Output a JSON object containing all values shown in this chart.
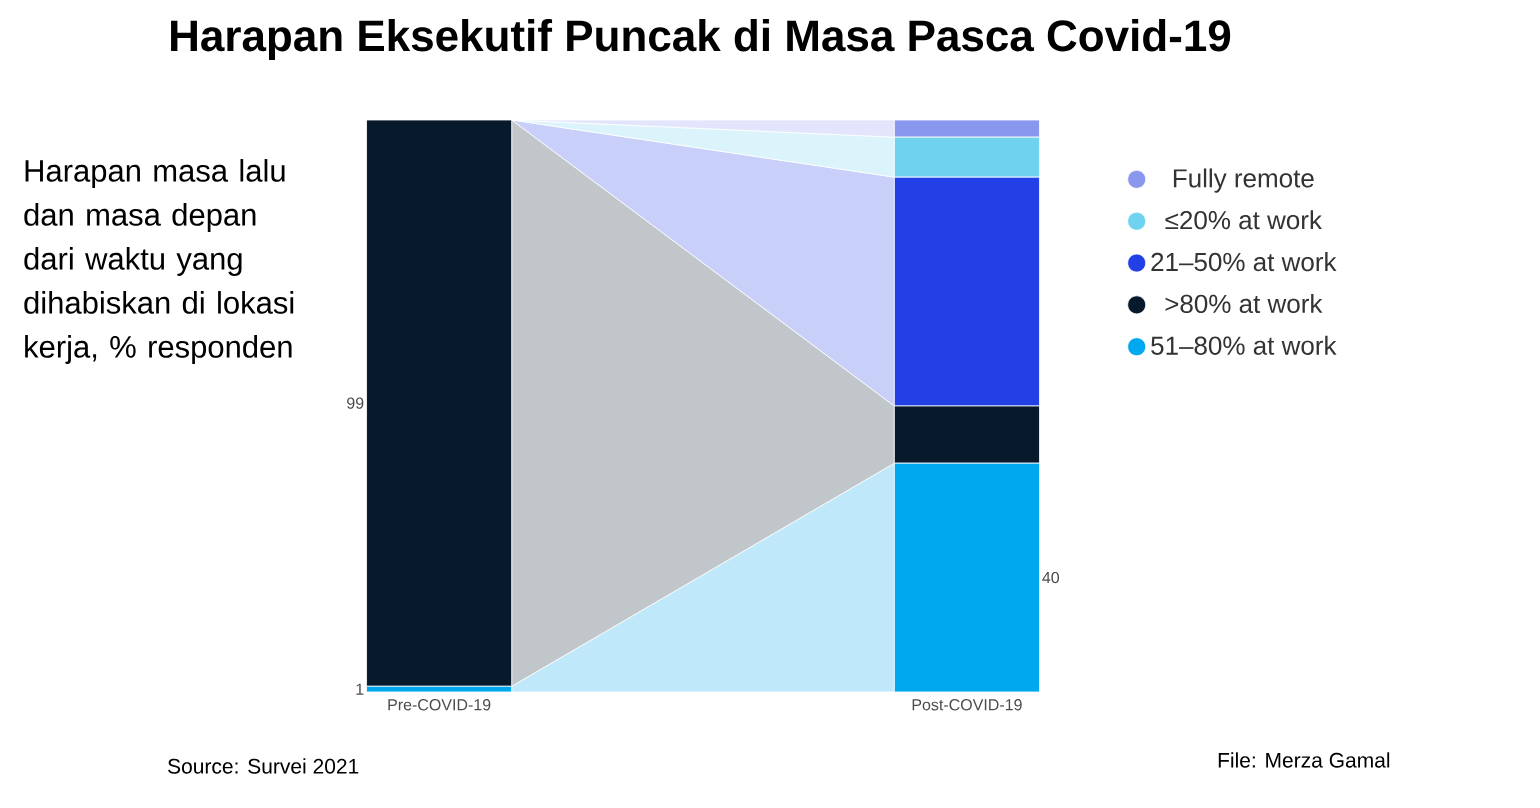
{
  "chart_data": {
    "type": "bar",
    "stacked": true,
    "title": "Harapan Eksekutif Puncak di Masa Pasca Covid-19",
    "subtitle": "Harapan masa lalu dan masa depan dari waktu yang dihabiskan di lokasi kerja, % responden",
    "categories": [
      "Pre-COVID-19",
      "Post-COVID-19"
    ],
    "series": [
      {
        "name": "51–80% at work",
        "color": "#00a8f0",
        "values": [
          1,
          40
        ],
        "value_labels": [
          "1",
          "40"
        ]
      },
      {
        "name": ">80% at work",
        "color": "#061a2b",
        "values": [
          99,
          10
        ],
        "value_labels": [
          "99",
          null
        ]
      },
      {
        "name": "21–50% at work",
        "color": "#2340e6",
        "values": [
          0,
          40
        ],
        "value_labels": [
          null,
          null
        ]
      },
      {
        "name": "≤20% at work",
        "color": "#6fd3f0",
        "values": [
          0,
          7
        ],
        "value_labels": [
          null,
          null
        ]
      },
      {
        "name": "Fully remote",
        "color": "#8a97ee",
        "values": [
          0,
          3
        ],
        "value_labels": [
          null,
          null
        ]
      }
    ],
    "ylim": [
      0,
      100
    ],
    "legend": "right",
    "annotations": [
      "Source: Survei 2021",
      "File: Merza Gamal"
    ]
  }
}
